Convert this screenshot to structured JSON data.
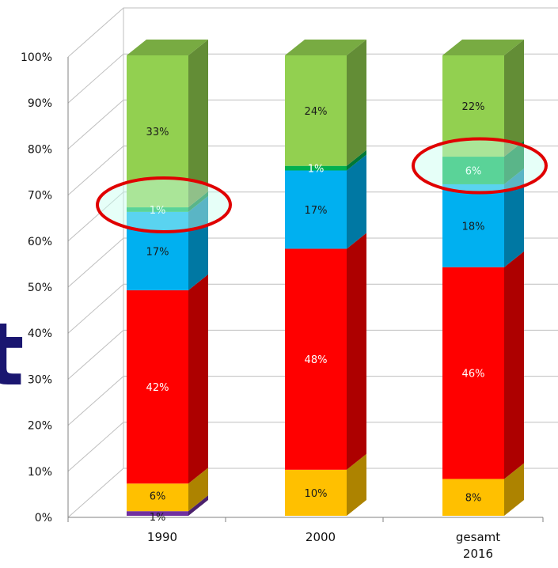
{
  "chart_data": {
    "type": "bar",
    "stacked": true,
    "percent_stacked": true,
    "categories": [
      "1990",
      "2000",
      "gesamt\n2016"
    ],
    "ylim": [
      0,
      100
    ],
    "yticks": [
      "0%",
      "10%",
      "20%",
      "30%",
      "40%",
      "50%",
      "60%",
      "70%",
      "80%",
      "90%",
      "100%"
    ],
    "series": [
      {
        "color": "#7030a0",
        "values": [
          1,
          0,
          0
        ],
        "labels": [
          "1%",
          "",
          ""
        ]
      },
      {
        "color": "#ffc000",
        "values": [
          6,
          10,
          8
        ],
        "labels": [
          "6%",
          "10%",
          "8%"
        ]
      },
      {
        "color": "#ff0000",
        "values": [
          42,
          48,
          46
        ],
        "labels": [
          "42%",
          "48%",
          "46%"
        ]
      },
      {
        "color": "#00b0f0",
        "values": [
          17,
          17,
          18
        ],
        "labels": [
          "17%",
          "17%",
          "18%"
        ]
      },
      {
        "color": "#00b050",
        "values": [
          1,
          1,
          6
        ],
        "labels": [
          "1%",
          "1%",
          "6%"
        ]
      },
      {
        "color": "#92d050",
        "values": [
          33,
          24,
          22
        ],
        "labels": [
          "33%",
          "24%",
          "22%"
        ]
      }
    ],
    "highlights": [
      {
        "category": "1990",
        "series_index": 4,
        "color": "#e00000"
      },
      {
        "category": "gesamt\n2016",
        "series_index": 4,
        "color": "#e00000"
      }
    ],
    "grid": true,
    "view": "3d"
  },
  "decor": {
    "partial_letter": "t"
  }
}
